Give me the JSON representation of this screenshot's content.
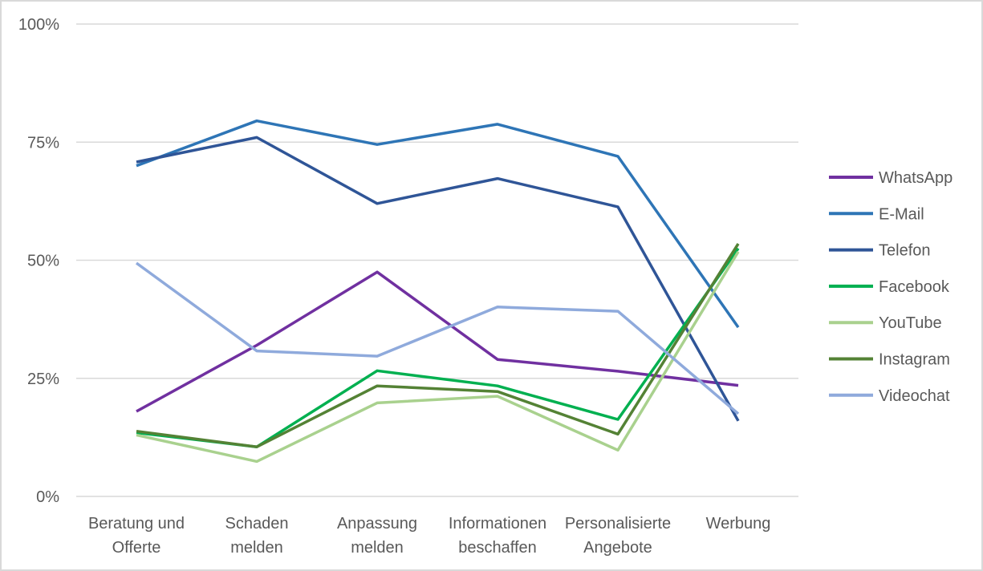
{
  "chart_data": {
    "type": "line",
    "title": "",
    "xlabel": "",
    "ylabel": "",
    "categories": [
      [
        "Beratung und",
        "Offerte"
      ],
      [
        "Schaden",
        "melden"
      ],
      [
        "Anpassung",
        "melden"
      ],
      [
        "Informationen",
        "beschaffen"
      ],
      [
        "Personalisierte",
        "Angebote"
      ],
      [
        "Werbung"
      ]
    ],
    "yticks": [
      "0%",
      "25%",
      "50%",
      "75%",
      "100%"
    ],
    "ylim": [
      0,
      100
    ],
    "grid": true,
    "legend_position": "right",
    "series": [
      {
        "name": "WhatsApp",
        "color": "#7030a0",
        "values": [
          18,
          32,
          47.5,
          29,
          26.5,
          23.5
        ]
      },
      {
        "name": "E-Mail",
        "color": "#2e75b6",
        "values": [
          70,
          79.5,
          74.5,
          78.8,
          72,
          35.8
        ]
      },
      {
        "name": "Telefon",
        "color": "#2f5597",
        "values": [
          70.8,
          76,
          62,
          67.3,
          61.3,
          16
        ]
      },
      {
        "name": "Facebook",
        "color": "#00b050",
        "values": [
          13.5,
          10.5,
          26.6,
          23.4,
          16.3,
          52.5
        ]
      },
      {
        "name": "YouTube",
        "color": "#a9d18e",
        "values": [
          13,
          7.4,
          19.8,
          21.2,
          9.8,
          51.8
        ]
      },
      {
        "name": "Instagram",
        "color": "#548235",
        "values": [
          13.8,
          10.5,
          23.4,
          22.2,
          13.2,
          53.5
        ]
      },
      {
        "name": "Videochat",
        "color": "#8faadc",
        "values": [
          49.4,
          30.8,
          29.7,
          40.1,
          39.2,
          17.5
        ]
      }
    ]
  }
}
